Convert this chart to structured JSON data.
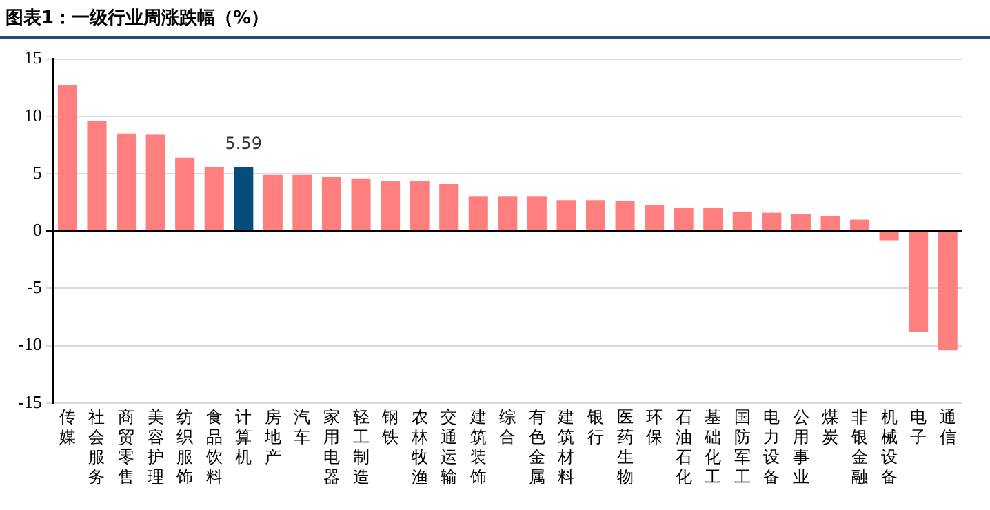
{
  "chart_data": {
    "type": "bar",
    "title": "图表1：一级行业周涨跌幅（%）",
    "categories": [
      "传媒",
      "社会服务",
      "商贸零售",
      "美容护理",
      "纺织服饰",
      "食品饮料",
      "计算机",
      "房地产",
      "汽车",
      "家用电器",
      "轻工制造",
      "钢铁",
      "农林牧渔",
      "交通运输",
      "建筑装饰",
      "综合",
      "有色金属",
      "建筑材料",
      "银行",
      "医药生物",
      "环保",
      "石油石化",
      "基础化工",
      "国防军工",
      "电力设备",
      "公用事业",
      "煤炭",
      "非银金融",
      "机械设备",
      "电子",
      "通信"
    ],
    "values": [
      12.7,
      9.6,
      8.5,
      8.4,
      6.4,
      5.6,
      5.59,
      4.9,
      4.9,
      4.7,
      4.6,
      4.4,
      4.4,
      4.1,
      3.0,
      3.0,
      3.0,
      2.7,
      2.7,
      2.6,
      2.3,
      2.0,
      2.0,
      1.7,
      1.6,
      1.5,
      1.3,
      1.0,
      -0.8,
      -8.8,
      -10.4
    ],
    "colors": [
      "#ff7f7f",
      "#ff7f7f",
      "#ff7f7f",
      "#ff7f7f",
      "#ff7f7f",
      "#ff7f7f",
      "#054e7b",
      "#ff7f7f",
      "#ff7f7f",
      "#ff7f7f",
      "#ff7f7f",
      "#ff7f7f",
      "#ff7f7f",
      "#ff7f7f",
      "#ff7f7f",
      "#ff7f7f",
      "#ff7f7f",
      "#ff7f7f",
      "#ff7f7f",
      "#ff7f7f",
      "#ff7f7f",
      "#ff7f7f",
      "#ff7f7f",
      "#ff7f7f",
      "#ff7f7f",
      "#ff7f7f",
      "#ff7f7f",
      "#ff7f7f",
      "#ff7f7f",
      "#ff7f7f",
      "#ff7f7f"
    ],
    "value_labels": [
      null,
      null,
      null,
      null,
      null,
      null,
      "5.59",
      null,
      null,
      null,
      null,
      null,
      null,
      null,
      null,
      null,
      null,
      null,
      null,
      null,
      null,
      null,
      null,
      null,
      null,
      null,
      null,
      null,
      null,
      null,
      null
    ],
    "ylim": [
      -15,
      15
    ],
    "yticks": [
      -15,
      -10,
      -5,
      0,
      5,
      10,
      15
    ],
    "grid": "y",
    "legend": false
  }
}
